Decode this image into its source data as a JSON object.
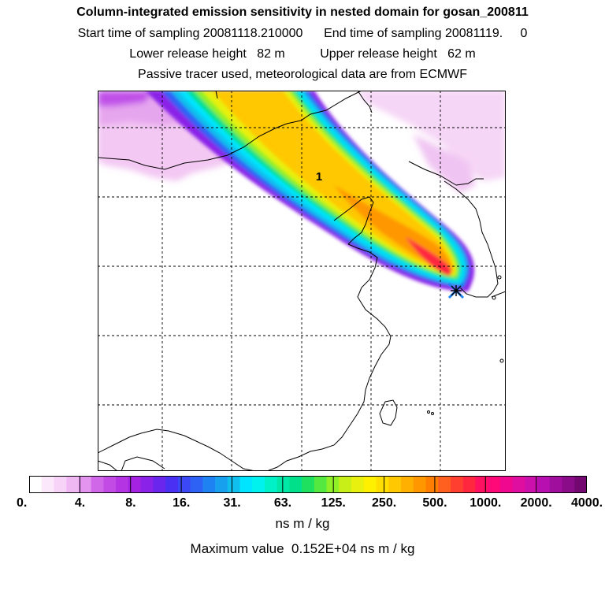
{
  "header": {
    "title": "Column-integrated emission sensitivity in nested domain for gosan_200811",
    "sampling_start_label": "Start time of sampling",
    "sampling_start": "20081118.210000",
    "sampling_end_label": "End time of sampling",
    "sampling_end": "20081119.     0",
    "lower_release_label": "Lower release height",
    "lower_release": "82 m",
    "upper_release_label": "Upper release height",
    "upper_release": "62 m",
    "tracer_note": "Passive tracer used, meteorological data are from ECMWF"
  },
  "map": {
    "marker_label": "1"
  },
  "colorbar": {
    "tick_labels": [
      "0.",
      "4.",
      "8.",
      "16.",
      "31.",
      "63.",
      "125.",
      "250.",
      "500.",
      "1000.",
      "2000.",
      "4000."
    ],
    "colors": [
      "#ffffff",
      "#fbe8fb",
      "#f7d3f7",
      "#f0b8f3",
      "#e394ee",
      "#d066e8",
      "#c24be6",
      "#b434e4",
      "#a522e3",
      "#8a22e8",
      "#6b26ee",
      "#4a30f3",
      "#3b48f5",
      "#2e62f5",
      "#1f82f2",
      "#17a0ee",
      "#10bfee",
      "#00e5ff",
      "#00f2ee",
      "#00f0c8",
      "#00e8a8",
      "#00e08a",
      "#20e060",
      "#55e840",
      "#90f028",
      "#c8f018",
      "#e8f010",
      "#fff000",
      "#ffde00",
      "#ffc800",
      "#ffb000",
      "#ff9800",
      "#ff7e00",
      "#ff6020",
      "#ff4030",
      "#ff2640",
      "#ff1060",
      "#ff0878",
      "#f0088e",
      "#e00ea0",
      "#cc10ac",
      "#b810b0",
      "#a00e9e",
      "#8a0c88",
      "#720870"
    ],
    "units": "ns m / kg",
    "max_label": "Maximum value",
    "max_value": "0.152E+04",
    "max_units": "ns m / kg"
  }
}
